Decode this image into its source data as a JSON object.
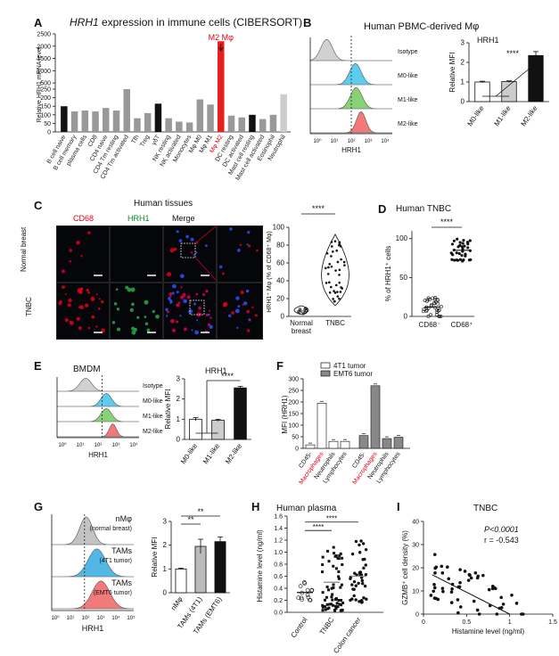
{
  "panels": {
    "A": {
      "label": "A",
      "title_prefix": "HRH1",
      "title_rest": " expression in immune cells (CIBERSORT)",
      "ylabel": "Relative HRH1 mRNA level",
      "yticks": [
        "0",
        "50",
        "100",
        "150",
        "200",
        "250",
        "500",
        "1000",
        "1500",
        "2000",
        "2500"
      ],
      "annotation": "M2 Mφ",
      "highlight_color": "#e8201c"
    },
    "B": {
      "label": "B",
      "title": "Human PBMC-derived Mφ",
      "bar_title": "HRH1",
      "ylabel": "Relative MFI",
      "xlabel": "HRH1",
      "hist_labels": [
        "Isotype",
        "M0-like",
        "M1-like",
        "M2-like"
      ],
      "sig": "****",
      "yticks": [
        "0",
        "1",
        "2",
        "3"
      ],
      "xticks": [
        "10⁰",
        "10¹",
        "10²",
        "10³",
        "10⁴"
      ]
    },
    "C": {
      "label": "C",
      "title": "Human tissues",
      "col_labels": [
        "CD68",
        "HRH1",
        "Merge"
      ],
      "row_labels": [
        "Normal breast",
        "TNBC"
      ],
      "ylabel": "HRH1⁺ Mφ (% of CD68⁺ Mφ)",
      "yticks": [
        "0",
        "20",
        "40",
        "60",
        "80",
        "100"
      ],
      "sig": "****",
      "categories": [
        "Normal breast",
        "TNBC"
      ]
    },
    "D": {
      "label": "D",
      "title": "Human TNBC",
      "ylabel": "% of HRH1⁺ cells",
      "yticks": [
        "0",
        "50",
        "100"
      ],
      "sig": "****",
      "categories": [
        "CD68⁻",
        "CD68⁺"
      ]
    },
    "E": {
      "label": "E",
      "title": "BMDM",
      "bar_title": "HRH1",
      "ylabel": "Relative MFI",
      "xlabel": "HRH1",
      "hist_labels": [
        "Isotype",
        "M0-like",
        "M1-like",
        "M2-like"
      ],
      "sig": "****",
      "yticks": [
        "0",
        "1",
        "2",
        "3"
      ]
    },
    "F": {
      "label": "F",
      "ylabel": "MFI (HRH1)",
      "legend": [
        "4T1 tumor",
        "EMT6 tumor"
      ],
      "yticks": [
        "0",
        "50",
        "100",
        "150",
        "200",
        "250",
        "300"
      ],
      "categories": [
        "CD45-",
        "Macrophages",
        "Neutrophils",
        "Lymphocytes"
      ]
    },
    "G": {
      "label": "G",
      "ylabel": "Relative MFI",
      "xlabel": "HRH1",
      "hist_labels": [
        "nMφ",
        "(normal breast)",
        "TAMs",
        "(4T1 tumor)",
        "TAMs",
        "(EMT6 tumor)"
      ],
      "sig": [
        "**",
        "**"
      ],
      "yticks": [
        "0",
        "1",
        "2",
        "3"
      ],
      "categories": [
        "nMφ",
        "TAMs (4T1)",
        "TAMs (EMT6)"
      ]
    },
    "H": {
      "label": "H",
      "title": "Human plasma",
      "ylabel": "Histamine level (ng/ml)",
      "yticks": [
        "0.0",
        "0.2",
        "0.4",
        "0.6",
        "0.8",
        "1.0",
        "1.2",
        "1.4",
        "1.6"
      ],
      "sig": [
        "****",
        "****"
      ],
      "categories": [
        "Control",
        "TNBC",
        "Colon cancer"
      ]
    },
    "I": {
      "label": "I",
      "title": "TNBC",
      "ylabel": "GZMB⁺ cell density (%)",
      "xlabel": "Histamine level (ng/ml)",
      "stat_p": "P<0.0001",
      "stat_r": "r = -0.543",
      "yticks": [
        "0",
        "10",
        "20",
        "30",
        "40"
      ],
      "xticks": [
        "0",
        "0.5",
        "1",
        "1.5"
      ]
    }
  },
  "chart_data": [
    {
      "type": "bar",
      "panel": "A",
      "categories": [
        "B cell naive",
        "B cell memory",
        "plasma cells",
        "CD8",
        "CD4 naive",
        "CD4 Tm resting",
        "CD4 Tm activated",
        "Tfh",
        "Treg",
        "γδT",
        "NK resting",
        "NK activated",
        "Monocytes",
        "Mφ M0",
        "Mφ M1",
        "Mφ M2",
        "DC resting",
        "DC activated",
        "Mast cell resting",
        "Mast cell activated",
        "Eosinophil",
        "Neutrophil"
      ],
      "values": [
        150,
        120,
        125,
        120,
        140,
        125,
        250,
        80,
        110,
        165,
        80,
        60,
        55,
        190,
        160,
        2200,
        95,
        85,
        100,
        75,
        100,
        220
      ],
      "colors": [
        "#111",
        "#999",
        "#999",
        "#999",
        "#999",
        "#999",
        "#999",
        "#999",
        "#999",
        "#111",
        "#999",
        "#999",
        "#999",
        "#999",
        "#999",
        "#e8201c",
        "#999",
        "#999",
        "#111",
        "#999",
        "#999",
        "#ccc"
      ],
      "ylim": [
        0,
        2500
      ]
    },
    {
      "type": "bar",
      "panel": "B",
      "categories": [
        "M0-like",
        "M1-like",
        "M2-like"
      ],
      "values": [
        1.0,
        1.02,
        2.35
      ],
      "errors": [
        0.04,
        0.04,
        0.2
      ],
      "ylim": [
        0,
        3
      ]
    },
    {
      "type": "scatter",
      "panel": "C",
      "categories": [
        "Normal breast",
        "TNBC"
      ],
      "means": [
        7,
        50
      ],
      "ylim": [
        0,
        100
      ]
    },
    {
      "type": "scatter",
      "panel": "D",
      "categories": [
        "CD68⁻",
        "CD68⁺"
      ],
      "means": [
        12,
        85
      ],
      "ylim": [
        0,
        110
      ]
    },
    {
      "type": "bar",
      "panel": "E",
      "categories": [
        "M0-like",
        "M1-like",
        "M2-like"
      ],
      "values": [
        1.0,
        0.95,
        2.55
      ],
      "errors": [
        0.08,
        0.05,
        0.08
      ],
      "ylim": [
        0,
        3
      ]
    },
    {
      "type": "bar",
      "panel": "F",
      "categories": [
        "CD45-",
        "Macrophages",
        "Neutrophils",
        "Lymphocytes"
      ],
      "series": [
        {
          "name": "4T1 tumor",
          "values": [
            15,
            195,
            30,
            30
          ]
        },
        {
          "name": "EMT6 tumor",
          "values": [
            55,
            270,
            42,
            48
          ]
        }
      ],
      "ylim": [
        0,
        300
      ]
    },
    {
      "type": "bar",
      "panel": "G",
      "categories": [
        "nMφ",
        "TAMs (4T1)",
        "TAMs (EMT6)"
      ],
      "values": [
        1.0,
        1.95,
        2.15
      ],
      "errors": [
        0.03,
        0.3,
        0.2
      ],
      "ylim": [
        0,
        3
      ]
    },
    {
      "type": "scatter",
      "panel": "H",
      "categories": [
        "Control",
        "TNBC",
        "Colon cancer"
      ],
      "means": [
        0.33,
        0.5,
        0.6
      ],
      "ylim": [
        0,
        1.6
      ]
    },
    {
      "type": "scatter",
      "panel": "I",
      "x_mean_line": [
        [
          0.1,
          17
        ],
        [
          1.0,
          0
        ]
      ],
      "xlim": [
        0,
        1.5
      ],
      "ylim": [
        0,
        40
      ]
    }
  ]
}
